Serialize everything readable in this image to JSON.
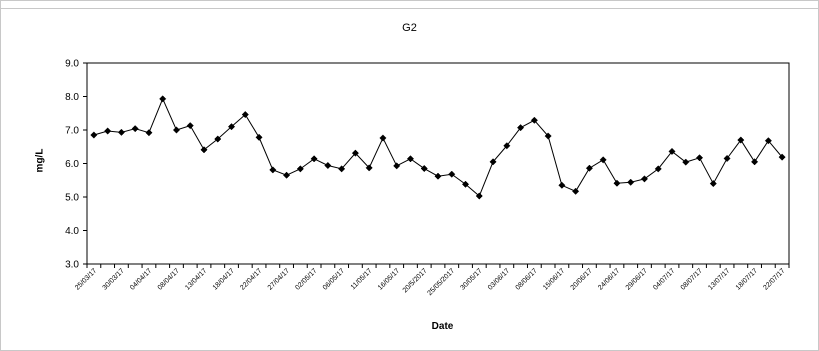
{
  "chart_data": {
    "type": "line",
    "title": "G2",
    "xlabel": "Date",
    "ylabel": "mg/L",
    "ylim": [
      3.0,
      9.0
    ],
    "yticks": [
      "3.0",
      "4.0",
      "5.0",
      "6.0",
      "7.0",
      "8.0",
      "9.0"
    ],
    "grid": false,
    "legend": "none",
    "marker": "diamond",
    "line_color": "#000000",
    "x_tick_labels": [
      "25/03/17",
      "30/03/17",
      "04/04/17",
      "08/04/17",
      "13/04/17",
      "18/04/17",
      "22/04/17",
      "27/04/17",
      "02/05/17",
      "06/05/17",
      "11/05/17",
      "16/05/17",
      "20/5/2017",
      "25/05/2017",
      "30/05/17",
      "03/06/17",
      "08/06/17",
      "15/06/17",
      "20/06/17",
      "24/06/17",
      "29/06/17",
      "04/07/17",
      "08/07/17",
      "13/07/17",
      "18/07/17",
      "22/07/17"
    ],
    "series": [
      {
        "values": [
          6.85,
          6.97,
          6.93,
          7.04,
          6.92,
          7.93,
          7.0,
          7.13,
          6.41,
          6.73,
          7.1,
          7.46,
          6.78,
          5.81,
          5.65,
          5.84,
          6.14,
          5.94,
          5.84,
          6.31,
          5.87,
          6.76,
          5.93,
          6.14,
          5.85,
          5.62,
          5.68,
          5.38,
          5.03,
          6.05,
          6.53,
          7.07,
          7.29,
          6.82,
          5.35,
          5.17,
          5.86,
          6.11,
          5.41,
          5.44,
          5.54,
          5.84,
          6.36,
          6.04,
          6.17,
          5.4,
          6.15,
          6.7,
          6.05,
          6.68,
          6.19
        ]
      }
    ]
  }
}
